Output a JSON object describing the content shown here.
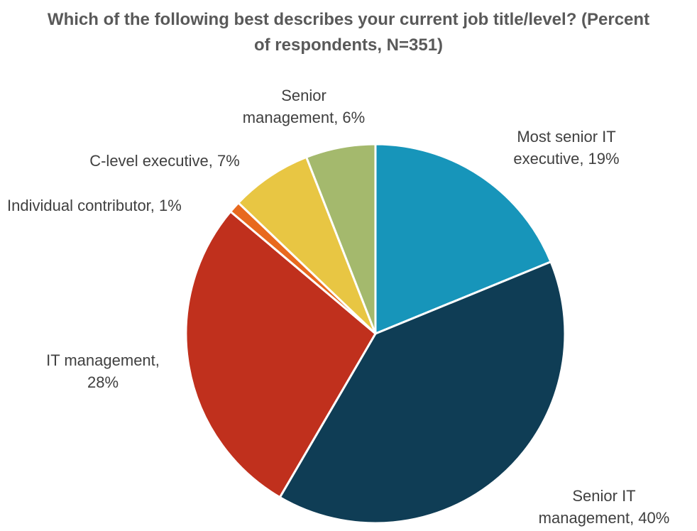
{
  "chart_data": {
    "type": "pie",
    "title_lines": [
      "Which of the following best describes your current job title/level? (Percent",
      "of respondents, N=351)"
    ],
    "slices": [
      {
        "name": "Most senior IT executive",
        "value": 19,
        "label_lines": [
          "Most senior IT",
          "executive, 19%"
        ],
        "color": "#1795BA"
      },
      {
        "name": "Senior IT management",
        "value": 40,
        "label_lines": [
          "Senior IT",
          "management, 40%"
        ],
        "color": "#0F3D55"
      },
      {
        "name": "IT management",
        "value": 28,
        "label_lines": [
          "IT management,",
          "28%"
        ],
        "color": "#C0301D"
      },
      {
        "name": "Individual contributor",
        "value": 1,
        "label_lines": [
          "Individual contributor, 1%"
        ],
        "color": "#E8691E"
      },
      {
        "name": "C-level executive",
        "value": 7,
        "label_lines": [
          "C-level executive, 7%"
        ],
        "color": "#E8C643"
      },
      {
        "name": "Senior management",
        "value": 6,
        "label_lines": [
          "Senior",
          "management, 6%"
        ],
        "color": "#A4B96D"
      }
    ],
    "start_angle": "12 o'clock",
    "direction": "clockwise",
    "legend": "none"
  }
}
